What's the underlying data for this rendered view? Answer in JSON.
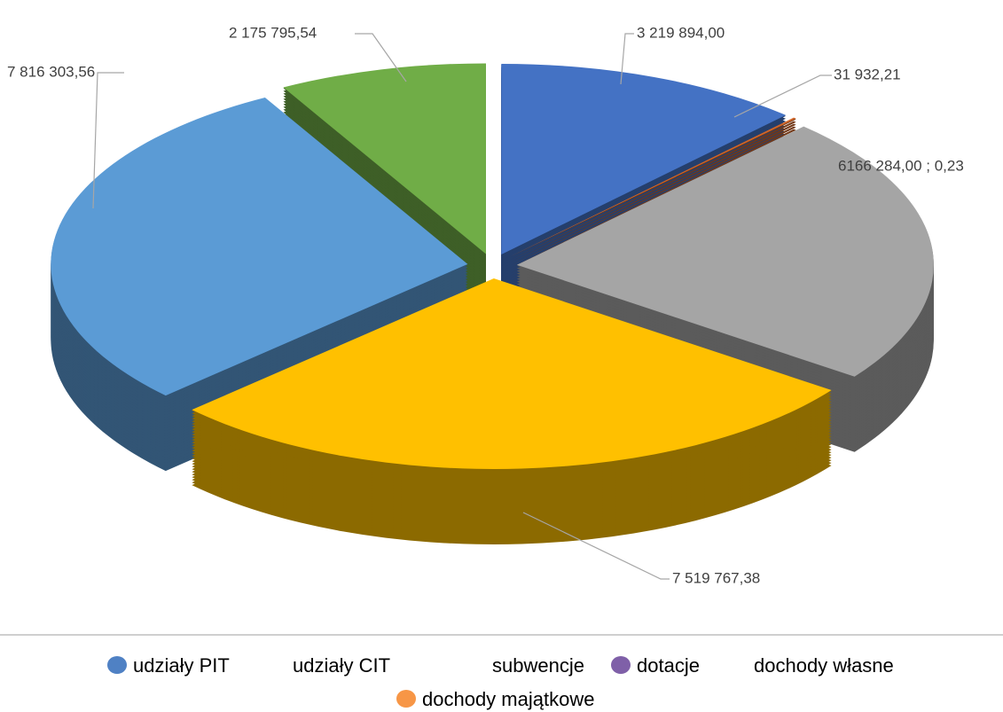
{
  "chart_data": {
    "type": "pie3d",
    "slices": [
      {
        "value": 3219894.0,
        "value_label": "3 219 894,00",
        "color": "#4472c4"
      },
      {
        "value": 31932.21,
        "value_label": "31 932,21",
        "color": "#d0662a"
      },
      {
        "value": 6166284.0,
        "value_label": "6166 284,00 ; 0,23",
        "color": "#a5a5a5"
      },
      {
        "value": 7519767.38,
        "value_label": "7 519 767,38",
        "color": "#ffc000"
      },
      {
        "value": 7816303.56,
        "value_label": "7 816 303,56",
        "color": "#5b9bd5"
      },
      {
        "value": 2175795.54,
        "value_label": "2 175 795,54",
        "color": "#70ad47"
      }
    ],
    "legend": [
      {
        "name": "udziały PIT",
        "marker": "#4f81c4"
      },
      {
        "name": "udziały CIT",
        "marker": null
      },
      {
        "name": "subwencje",
        "marker": null
      },
      {
        "name": "dotacje",
        "marker": "#7f60a8"
      },
      {
        "name": "dochody własne",
        "marker": null
      },
      {
        "name": "dochody  majątkowe",
        "marker": "#f79646"
      }
    ]
  }
}
